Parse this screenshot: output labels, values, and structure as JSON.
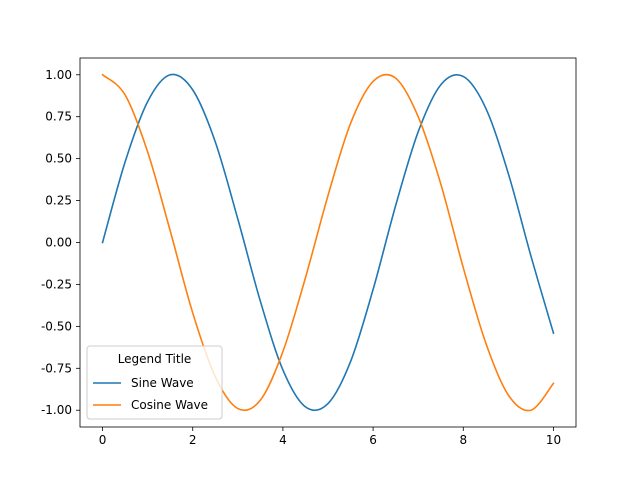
{
  "chart_data": {
    "type": "line",
    "title": "",
    "xlabel": "",
    "ylabel": "",
    "xlim": [
      -0.5,
      10.5
    ],
    "ylim": [
      -1.1,
      1.1
    ],
    "xticks": [
      0,
      2,
      4,
      6,
      8,
      10
    ],
    "xtick_labels": [
      "0",
      "2",
      "4",
      "6",
      "8",
      "10"
    ],
    "yticks": [
      1.0,
      0.75,
      0.5,
      0.25,
      0.0,
      -0.25,
      -0.5,
      -0.75,
      -1.0
    ],
    "ytick_labels": [
      "1.00",
      "0.75",
      "0.50",
      "0.25",
      "0.00",
      "-0.25",
      "-0.50",
      "-0.75",
      "-1.00"
    ],
    "grid": false,
    "legend": {
      "title": "Legend Title",
      "placement": "lower-left"
    },
    "x": [
      0,
      0.5,
      1,
      1.5,
      2,
      2.5,
      3,
      3.5,
      4,
      4.5,
      5,
      5.5,
      6,
      6.5,
      7,
      7.5,
      8,
      8.5,
      9,
      9.5,
      10
    ],
    "series": [
      {
        "name": "Sine Wave",
        "color": "#1f77b4",
        "values": [
          0.0,
          0.48,
          0.84,
          1.0,
          0.91,
          0.6,
          0.14,
          -0.35,
          -0.76,
          -0.98,
          -0.96,
          -0.71,
          -0.28,
          0.22,
          0.66,
          0.94,
          0.99,
          0.8,
          0.41,
          -0.08,
          -0.54
        ]
      },
      {
        "name": "Cosine Wave",
        "color": "#ff7f0e",
        "values": [
          1.0,
          0.88,
          0.54,
          0.07,
          -0.42,
          -0.8,
          -0.99,
          -0.94,
          -0.65,
          -0.21,
          0.28,
          0.71,
          0.96,
          0.98,
          0.75,
          0.35,
          -0.15,
          -0.6,
          -0.91,
          -1.0,
          -0.84
        ]
      }
    ]
  }
}
